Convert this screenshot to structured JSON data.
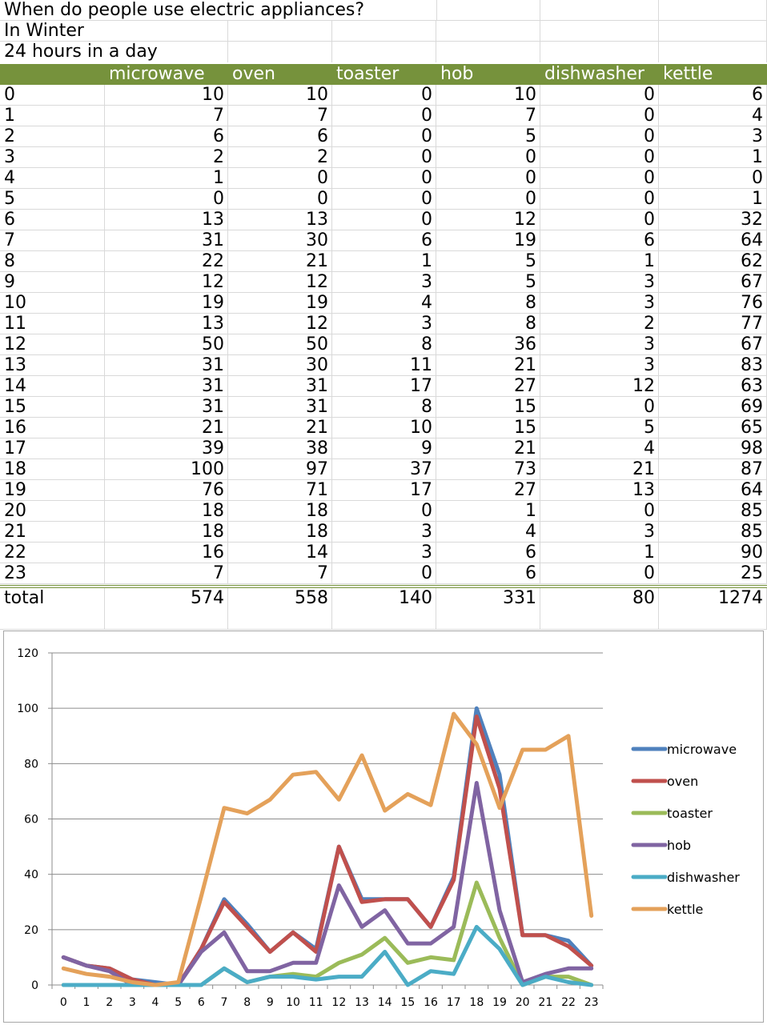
{
  "sheet": {
    "title": "When do people use electric appliances?",
    "subtitle": "In Winter",
    "note": "24 hours in a day",
    "headers": [
      "microwave",
      "oven",
      "toaster",
      "hob",
      "dishwasher",
      "kettle"
    ],
    "rows": [
      {
        "hour": "0",
        "vals": [
          "10",
          "10",
          "0",
          "10",
          "0",
          "6"
        ]
      },
      {
        "hour": "1",
        "vals": [
          "7",
          "7",
          "0",
          "7",
          "0",
          "4"
        ]
      },
      {
        "hour": "2",
        "vals": [
          "6",
          "6",
          "0",
          "5",
          "0",
          "3"
        ]
      },
      {
        "hour": "3",
        "vals": [
          "2",
          "2",
          "0",
          "0",
          "0",
          "1"
        ]
      },
      {
        "hour": "4",
        "vals": [
          "1",
          "0",
          "0",
          "0",
          "0",
          "0"
        ]
      },
      {
        "hour": "5",
        "vals": [
          "0",
          "0",
          "0",
          "0",
          "0",
          "1"
        ]
      },
      {
        "hour": "6",
        "vals": [
          "13",
          "13",
          "0",
          "12",
          "0",
          "32"
        ]
      },
      {
        "hour": "7",
        "vals": [
          "31",
          "30",
          "6",
          "19",
          "6",
          "64"
        ]
      },
      {
        "hour": "8",
        "vals": [
          "22",
          "21",
          "1",
          "5",
          "1",
          "62"
        ]
      },
      {
        "hour": "9",
        "vals": [
          "12",
          "12",
          "3",
          "5",
          "3",
          "67"
        ]
      },
      {
        "hour": "10",
        "vals": [
          "19",
          "19",
          "4",
          "8",
          "3",
          "76"
        ]
      },
      {
        "hour": "11",
        "vals": [
          "13",
          "12",
          "3",
          "8",
          "2",
          "77"
        ]
      },
      {
        "hour": "12",
        "vals": [
          "50",
          "50",
          "8",
          "36",
          "3",
          "67"
        ]
      },
      {
        "hour": "13",
        "vals": [
          "31",
          "30",
          "11",
          "21",
          "3",
          "83"
        ]
      },
      {
        "hour": "14",
        "vals": [
          "31",
          "31",
          "17",
          "27",
          "12",
          "63"
        ]
      },
      {
        "hour": "15",
        "vals": [
          "31",
          "31",
          "8",
          "15",
          "0",
          "69"
        ]
      },
      {
        "hour": "16",
        "vals": [
          "21",
          "21",
          "10",
          "15",
          "5",
          "65"
        ]
      },
      {
        "hour": "17",
        "vals": [
          "39",
          "38",
          "9",
          "21",
          "4",
          "98"
        ]
      },
      {
        "hour": "18",
        "vals": [
          "100",
          "97",
          "37",
          "73",
          "21",
          "87"
        ]
      },
      {
        "hour": "19",
        "vals": [
          "76",
          "71",
          "17",
          "27",
          "13",
          "64"
        ]
      },
      {
        "hour": "20",
        "vals": [
          "18",
          "18",
          "0",
          "1",
          "0",
          "85"
        ]
      },
      {
        "hour": "21",
        "vals": [
          "18",
          "18",
          "3",
          "4",
          "3",
          "85"
        ]
      },
      {
        "hour": "22",
        "vals": [
          "16",
          "14",
          "3",
          "6",
          "1",
          "90"
        ]
      },
      {
        "hour": "23",
        "vals": [
          "7",
          "7",
          "0",
          "6",
          "0",
          "25"
        ]
      }
    ],
    "total": {
      "label": "total",
      "vals": [
        "574",
        "558",
        "140",
        "331",
        "80",
        "1274"
      ]
    }
  },
  "chart_data": {
    "type": "line",
    "x": [
      "0",
      "1",
      "2",
      "3",
      "4",
      "5",
      "6",
      "7",
      "8",
      "9",
      "10",
      "11",
      "12",
      "13",
      "14",
      "15",
      "16",
      "17",
      "18",
      "19",
      "20",
      "21",
      "22",
      "23"
    ],
    "ylim": [
      0,
      120
    ],
    "yticks": [
      0,
      20,
      40,
      60,
      80,
      100,
      120
    ],
    "grid": true,
    "legend": "right",
    "series": [
      {
        "name": "microwave",
        "color": "#4f81bd",
        "values": [
          10,
          7,
          6,
          2,
          1,
          0,
          13,
          31,
          22,
          12,
          19,
          13,
          50,
          31,
          31,
          31,
          21,
          39,
          100,
          76,
          18,
          18,
          16,
          7
        ]
      },
      {
        "name": "oven",
        "color": "#c0504d",
        "values": [
          10,
          7,
          6,
          2,
          0,
          0,
          13,
          30,
          21,
          12,
          19,
          12,
          50,
          30,
          31,
          31,
          21,
          38,
          97,
          71,
          18,
          18,
          14,
          7
        ]
      },
      {
        "name": "toaster",
        "color": "#9bbb59",
        "values": [
          0,
          0,
          0,
          0,
          0,
          0,
          0,
          6,
          1,
          3,
          4,
          3,
          8,
          11,
          17,
          8,
          10,
          9,
          37,
          17,
          0,
          3,
          3,
          0
        ]
      },
      {
        "name": "hob",
        "color": "#8064a2",
        "values": [
          10,
          7,
          5,
          0,
          0,
          0,
          12,
          19,
          5,
          5,
          8,
          8,
          36,
          21,
          27,
          15,
          15,
          21,
          73,
          27,
          1,
          4,
          6,
          6
        ]
      },
      {
        "name": "dishwasher",
        "color": "#4bacc6",
        "values": [
          0,
          0,
          0,
          0,
          0,
          0,
          0,
          6,
          1,
          3,
          3,
          2,
          3,
          3,
          12,
          0,
          5,
          4,
          21,
          13,
          0,
          3,
          1,
          0
        ]
      },
      {
        "name": "kettle",
        "color": "#e4a15a",
        "values": [
          6,
          4,
          3,
          1,
          0,
          1,
          32,
          64,
          62,
          67,
          76,
          77,
          67,
          83,
          63,
          69,
          65,
          98,
          87,
          64,
          85,
          85,
          90,
          25
        ]
      }
    ]
  }
}
